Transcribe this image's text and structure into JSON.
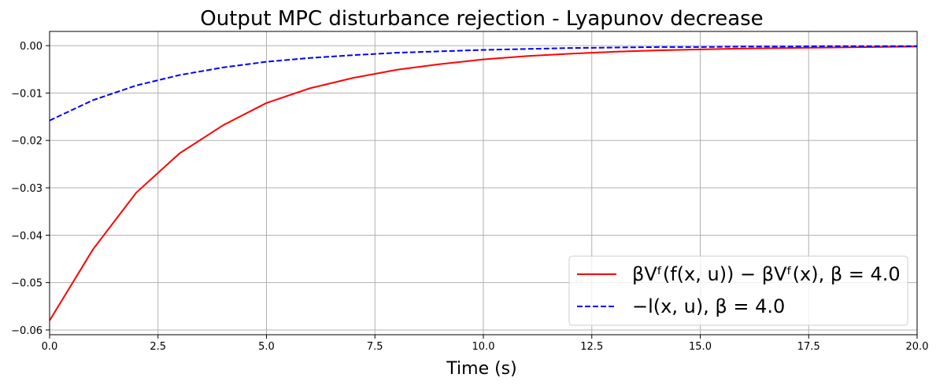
{
  "chart_data": {
    "type": "line",
    "title": "Output MPC disturbance rejection - Lyapunov decrease",
    "xlabel": "Time (s)",
    "ylabel": "",
    "xlim": [
      0,
      20
    ],
    "ylim": [
      -0.061,
      0.003
    ],
    "xticks": [
      0,
      2.5,
      5,
      7.5,
      10,
      12.5,
      15,
      17.5,
      20
    ],
    "xtick_labels": [
      "0.0",
      "2.5",
      "5.0",
      "7.5",
      "10.0",
      "12.5",
      "15.0",
      "17.5",
      "20.0"
    ],
    "yticks": [
      0,
      -0.01,
      -0.02,
      -0.03,
      -0.04,
      -0.05,
      -0.06
    ],
    "ytick_labels": [
      "0.00",
      "−0.01",
      "−0.02",
      "−0.03",
      "−0.04",
      "−0.05",
      "−0.06"
    ],
    "grid": true,
    "legend_position": "bottom-right",
    "series": [
      {
        "name": "βVᶠ(f(x, u)) − βVᶠ(x), β = 4.0",
        "color": "#ff0000",
        "dash": "solid",
        "x": [
          0,
          1,
          2,
          3,
          4,
          5,
          6,
          7,
          8,
          9,
          10,
          11,
          12,
          13,
          14,
          15,
          16,
          17,
          18,
          19,
          20
        ],
        "y": [
          -0.058,
          -0.043,
          -0.031,
          -0.0227,
          -0.0168,
          -0.0121,
          -0.009,
          -0.0068,
          -0.0051,
          -0.0039,
          -0.0029,
          -0.0022,
          -0.0017,
          -0.0013,
          -0.001,
          -0.0008,
          -0.0006,
          -0.0005,
          -0.0004,
          -0.0003,
          -0.0002
        ]
      },
      {
        "name": "−l(x, u), β = 4.0",
        "color": "#0000ff",
        "dash": "dashed",
        "x": [
          0,
          1,
          2,
          3,
          4,
          5,
          6,
          7,
          8,
          9,
          10,
          11,
          12,
          13,
          14,
          15,
          16,
          17,
          18,
          19,
          20
        ],
        "y": [
          -0.0158,
          -0.0115,
          -0.0084,
          -0.0062,
          -0.0046,
          -0.0034,
          -0.0026,
          -0.002,
          -0.0015,
          -0.0012,
          -0.0009,
          -0.0007,
          -0.0005,
          -0.0004,
          -0.0003,
          -0.0003,
          -0.0002,
          -0.0002,
          -0.0001,
          -0.0001,
          -0.0001
        ]
      }
    ]
  }
}
